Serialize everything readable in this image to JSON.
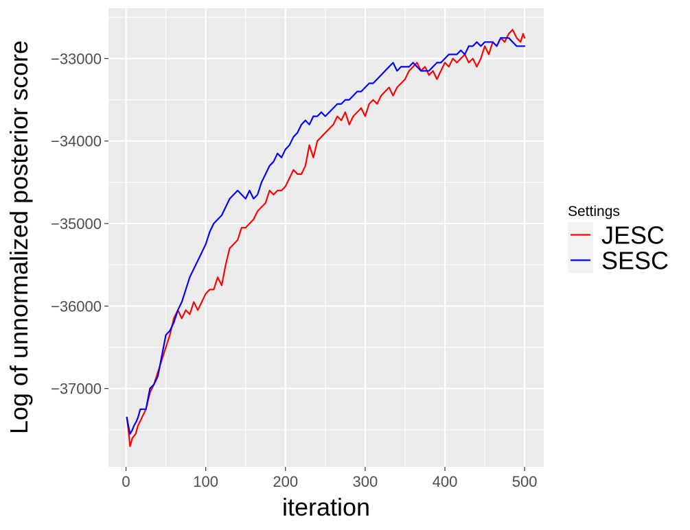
{
  "chart_data": {
    "type": "line",
    "title": "",
    "xlabel": "iteration",
    "ylabel": "Log of unnormalized posterior score",
    "xlim": [
      -22,
      524
    ],
    "ylim": [
      -37950,
      -32390
    ],
    "x_ticks": [
      0,
      100,
      200,
      300,
      400,
      500
    ],
    "y_ticks": [
      -37000,
      -36000,
      -35000,
      -34000,
      -33000
    ],
    "x_tick_labels": [
      "0",
      "100",
      "200",
      "300",
      "400",
      "500"
    ],
    "y_tick_labels": [
      "−37000",
      "−36000",
      "−35000",
      "−34000",
      "−33000"
    ],
    "grid": true,
    "panel_background": "#ebebeb",
    "grid_color": "#ffffff",
    "legend": {
      "title": "Settings",
      "position": "right"
    },
    "series": [
      {
        "name": "JESC",
        "color": "#ff0000",
        "x": [
          1,
          3,
          5,
          8,
          12,
          15,
          20,
          25,
          30,
          35,
          40,
          45,
          50,
          55,
          60,
          65,
          70,
          75,
          80,
          85,
          90,
          95,
          100,
          105,
          110,
          115,
          120,
          125,
          130,
          135,
          140,
          145,
          150,
          155,
          160,
          165,
          170,
          175,
          180,
          185,
          190,
          195,
          200,
          205,
          210,
          215,
          220,
          225,
          230,
          235,
          240,
          245,
          250,
          255,
          260,
          265,
          270,
          275,
          280,
          285,
          290,
          295,
          300,
          305,
          310,
          315,
          320,
          325,
          330,
          335,
          340,
          345,
          350,
          355,
          360,
          365,
          370,
          375,
          380,
          385,
          390,
          395,
          400,
          405,
          410,
          415,
          420,
          425,
          430,
          435,
          440,
          445,
          450,
          455,
          460,
          465,
          470,
          475,
          480,
          485,
          490,
          495,
          498,
          500
        ],
        "y": [
          -37350,
          -37500,
          -37700,
          -37600,
          -37550,
          -37450,
          -37350,
          -37250,
          -37050,
          -36950,
          -36800,
          -36650,
          -36500,
          -36350,
          -36150,
          -36050,
          -36150,
          -36050,
          -36100,
          -35950,
          -36050,
          -35950,
          -35850,
          -35800,
          -35800,
          -35650,
          -35750,
          -35500,
          -35300,
          -35250,
          -35200,
          -35050,
          -35050,
          -35000,
          -34950,
          -34850,
          -34800,
          -34750,
          -34600,
          -34650,
          -34600,
          -34600,
          -34550,
          -34450,
          -34350,
          -34400,
          -34400,
          -34300,
          -34050,
          -34200,
          -34000,
          -33950,
          -33900,
          -33850,
          -33800,
          -33700,
          -33750,
          -33650,
          -33800,
          -33700,
          -33650,
          -33600,
          -33700,
          -33550,
          -33500,
          -33550,
          -33450,
          -33400,
          -33350,
          -33450,
          -33350,
          -33300,
          -33250,
          -33150,
          -33100,
          -33050,
          -33150,
          -33100,
          -33200,
          -33150,
          -33250,
          -33150,
          -33050,
          -33100,
          -33000,
          -33050,
          -33000,
          -32950,
          -33050,
          -33000,
          -33100,
          -33000,
          -32850,
          -32950,
          -32800,
          -32850,
          -32750,
          -32800,
          -32700,
          -32650,
          -32750,
          -32800,
          -32700,
          -32750
        ]
      },
      {
        "name": "SESC",
        "color": "#0000ff",
        "x": [
          1,
          3,
          5,
          8,
          10,
          13,
          15,
          18,
          20,
          25,
          30,
          35,
          40,
          45,
          50,
          55,
          60,
          65,
          70,
          75,
          80,
          85,
          90,
          95,
          100,
          105,
          110,
          115,
          120,
          125,
          130,
          135,
          140,
          145,
          150,
          155,
          160,
          165,
          170,
          175,
          180,
          185,
          190,
          195,
          200,
          205,
          210,
          215,
          220,
          225,
          230,
          235,
          240,
          245,
          250,
          255,
          260,
          265,
          270,
          275,
          280,
          285,
          290,
          295,
          300,
          305,
          310,
          315,
          320,
          325,
          330,
          335,
          340,
          345,
          350,
          355,
          360,
          365,
          370,
          375,
          380,
          385,
          390,
          395,
          400,
          405,
          410,
          415,
          420,
          425,
          430,
          435,
          440,
          445,
          450,
          455,
          460,
          465,
          470,
          475,
          480,
          485,
          490,
          495,
          500
        ],
        "y": [
          -37350,
          -37450,
          -37550,
          -37500,
          -37450,
          -37400,
          -37350,
          -37250,
          -37250,
          -37250,
          -37000,
          -36950,
          -36850,
          -36600,
          -36350,
          -36300,
          -36200,
          -36050,
          -35950,
          -35800,
          -35650,
          -35550,
          -35450,
          -35350,
          -35250,
          -35100,
          -35000,
          -34950,
          -34900,
          -34800,
          -34700,
          -34650,
          -34600,
          -34650,
          -34700,
          -34600,
          -34700,
          -34650,
          -34500,
          -34400,
          -34300,
          -34250,
          -34150,
          -34200,
          -34100,
          -34050,
          -33950,
          -33900,
          -33800,
          -33750,
          -33800,
          -33700,
          -33700,
          -33650,
          -33700,
          -33650,
          -33600,
          -33550,
          -33550,
          -33500,
          -33500,
          -33450,
          -33400,
          -33400,
          -33350,
          -33300,
          -33300,
          -33250,
          -33200,
          -33150,
          -33100,
          -33050,
          -33150,
          -33100,
          -33100,
          -33100,
          -33050,
          -33100,
          -33150,
          -33150,
          -33150,
          -33100,
          -33050,
          -33050,
          -33000,
          -32950,
          -32950,
          -32950,
          -32900,
          -32950,
          -32850,
          -32850,
          -32800,
          -32850,
          -32800,
          -32800,
          -32800,
          -32850,
          -32750,
          -32750,
          -32750,
          -32800,
          -32850,
          -32850,
          -32850
        ]
      }
    ]
  }
}
